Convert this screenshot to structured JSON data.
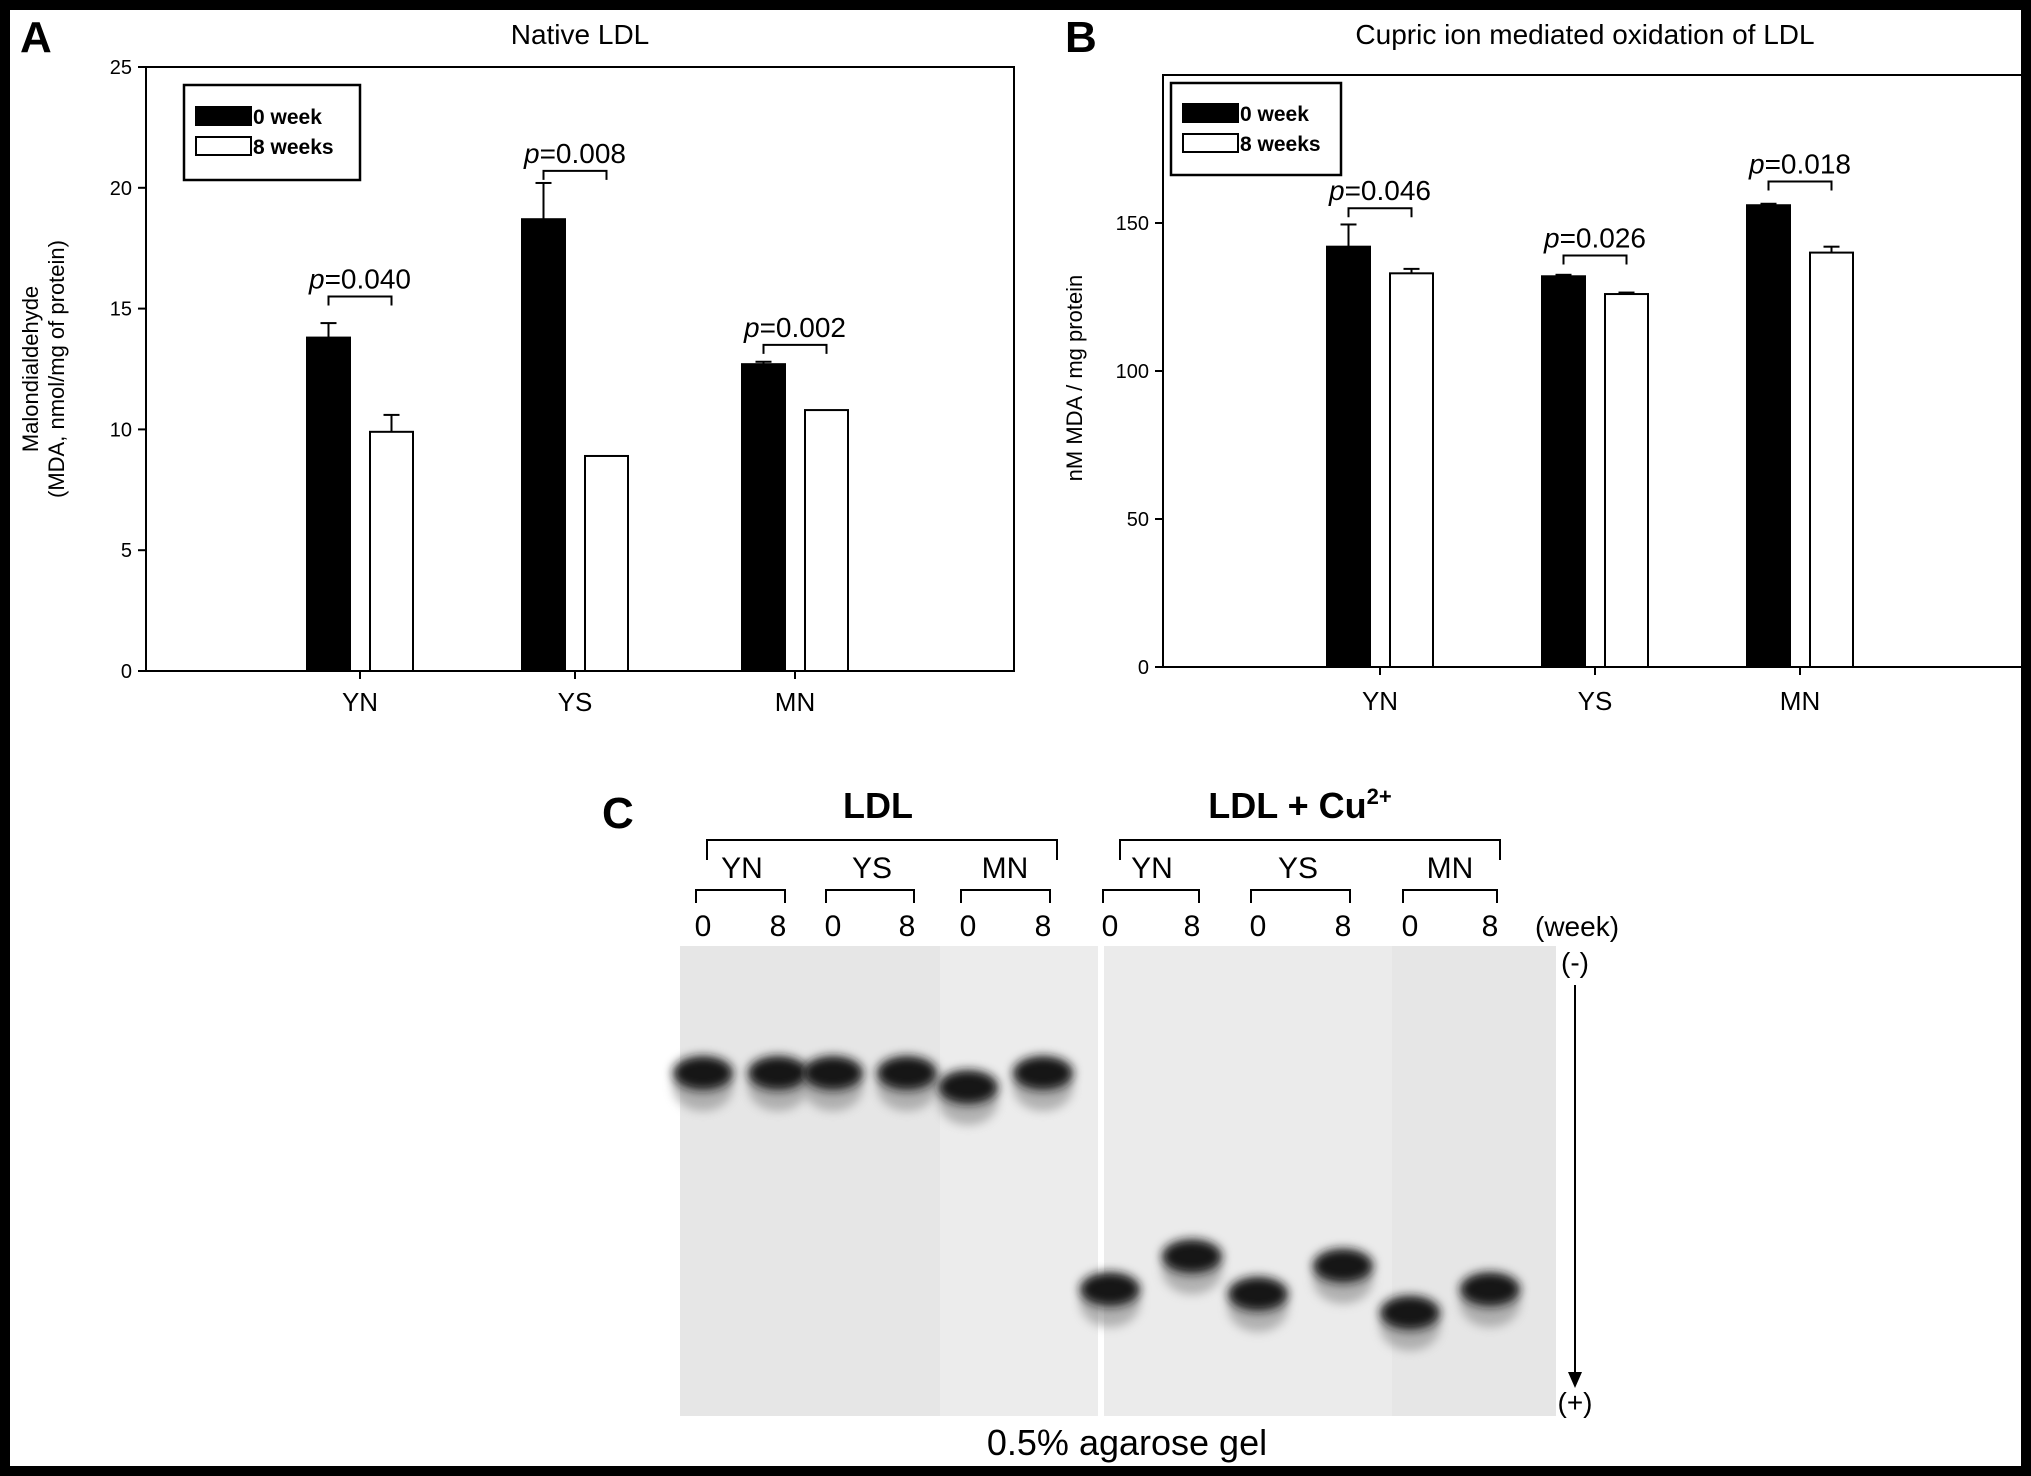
{
  "panels": {
    "A": {
      "letter": "A"
    },
    "B": {
      "letter": "B"
    },
    "C": {
      "letter": "C"
    }
  },
  "chart_data": [
    {
      "type": "bar",
      "panel": "A",
      "title": "Native LDL",
      "ylabel_line1": "Malondialdehyde",
      "ylabel_line2": "(MDA, nmol/mg of protein)",
      "categories": [
        "YN",
        "YS",
        "MN"
      ],
      "ylim": [
        0,
        25
      ],
      "yticks": [
        0,
        5,
        10,
        15,
        20,
        25
      ],
      "legend": {
        "position": "top-left",
        "entries": [
          "0 week",
          "8 weeks"
        ]
      },
      "series": [
        {
          "name": "0 week",
          "color": "#000000",
          "values": [
            13.8,
            18.7,
            12.7
          ],
          "errors": [
            0.6,
            1.5,
            0.1
          ]
        },
        {
          "name": "8 weeks",
          "color": "#ffffff",
          "values": [
            9.9,
            8.9,
            10.8
          ],
          "errors": [
            0.7,
            0,
            0
          ]
        }
      ],
      "annotations": [
        {
          "category": "YN",
          "italic": "p",
          "rest": "=0.040",
          "bracket_y": 15.5
        },
        {
          "category": "YS",
          "italic": "p",
          "rest": "=0.008",
          "bracket_y": 20.7
        },
        {
          "category": "MN",
          "italic": "p",
          "rest": "=0.002",
          "bracket_y": 13.5
        }
      ]
    },
    {
      "type": "bar",
      "panel": "B",
      "title": "Cupric ion mediated oxidation of LDL",
      "ylabel": "nM MDA / mg protein",
      "categories": [
        "YN",
        "YS",
        "MN"
      ],
      "ylim": [
        0,
        200
      ],
      "yticks": [
        0,
        50,
        100,
        150
      ],
      "legend": {
        "position": "top-left",
        "entries": [
          "0 week",
          "8 weeks"
        ]
      },
      "series": [
        {
          "name": "0 week",
          "color": "#000000",
          "values": [
            142,
            132,
            156
          ],
          "errors": [
            7.5,
            0.5,
            0.5
          ]
        },
        {
          "name": "8 weeks",
          "color": "#ffffff",
          "values": [
            133,
            126,
            140
          ],
          "errors": [
            1.5,
            0.5,
            2
          ]
        }
      ],
      "annotations": [
        {
          "category": "YN",
          "italic": "p",
          "rest": "=0.046",
          "bracket_y": 155
        },
        {
          "category": "YS",
          "italic": "p",
          "rest": "=0.026",
          "bracket_y": 139
        },
        {
          "category": "MN",
          "italic": "p",
          "rest": "=0.018",
          "bracket_y": 164
        }
      ]
    }
  ],
  "gel": {
    "header_left": "LDL",
    "header_right_base": "LDL + Cu",
    "header_right_sup": "2+",
    "groups": [
      "YN",
      "YS",
      "MN"
    ],
    "lane_labels": [
      "0",
      "8"
    ],
    "week_label": "(week)",
    "top_pole": "(-)",
    "bottom_pole": "(+)",
    "caption": "0.5% agarose gel",
    "bands_left": [
      0.27,
      0.27,
      0.27,
      0.27,
      0.3,
      0.27
    ],
    "bands_right": [
      0.73,
      0.66,
      0.74,
      0.68,
      0.78,
      0.73
    ]
  }
}
